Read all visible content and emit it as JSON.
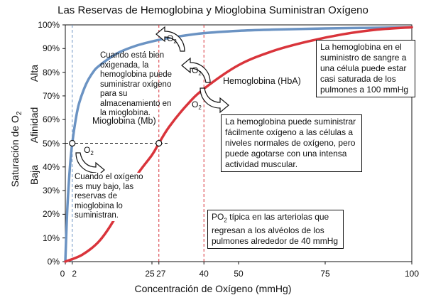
{
  "title": "Las Reservas de Hemoglobina y Mioglobina Suministran Oxígeno",
  "o2_label": "O",
  "o2_sub": "2",
  "annotations": {
    "well_oxygenated": "Cuando está bien oxigenada, la hemoglobina puede suministrar oxígeno para su almacenamiento en la mioglobina.",
    "myo_curve": "Mioglobina (Mb)",
    "hemo_curve": "Hemoglobina (HbA)",
    "blood_box": "La hemoglobina en el suministro de sangre a una célula puede estar casi saturada de los pulmones a 100 mmHg",
    "cells_box": "La hemoglobina puede suministrar fácilmente oxígeno a las células a niveles normales de oxígeno, pero puede agotarse con una intensa actividad muscular.",
    "low_oxygen": "Cuando el oxígeno es muy bajo, las reservas de mioglobina lo suministran.",
    "po2_prefix": "PO",
    "po2_sub": "2",
    "po2_text": " típica en las arteriolas que regresan a los alvéolos de los pulmones alrededor de 40 mmHg"
  },
  "y_side": {
    "alta": "Alta",
    "afinidad": "Afinidad",
    "baja": "Baja"
  },
  "chart_data": {
    "type": "line",
    "title": "Las Reservas de Hemoglobina y Mioglobina Suministran Oxígeno",
    "xlabel": "Concentración de Oxígeno (mmHg)",
    "ylabel_prefix": "Saturación de O",
    "ylabel_sub": "2",
    "xlim": [
      0,
      100
    ],
    "ylim": [
      0,
      100
    ],
    "x_ticks": [
      0,
      2,
      25,
      27,
      40,
      50,
      75,
      100
    ],
    "y_ticks": [
      "0%",
      "10%",
      "20%",
      "30%",
      "40%",
      "50%",
      "60%",
      "70%",
      "80%",
      "90%",
      "100%"
    ],
    "series": [
      {
        "name": "Mioglobina (Mb)",
        "color": "#6b93c3",
        "x": [
          0,
          0.5,
          1,
          1.5,
          2,
          3,
          4,
          6,
          8,
          10,
          15,
          20,
          25,
          30,
          40,
          50,
          60,
          75,
          100
        ],
        "y": [
          0,
          20,
          33,
          43,
          50,
          60,
          67,
          75,
          80,
          83,
          88,
          91,
          93,
          94.5,
          96.5,
          97.5,
          98,
          98.5,
          99
        ]
      },
      {
        "name": "Hemoglobina (HbA)",
        "color": "#d9343b",
        "x": [
          0,
          5,
          10,
          15,
          20,
          25,
          27,
          30,
          35,
          40,
          50,
          60,
          70,
          80,
          90,
          100
        ],
        "y": [
          0,
          3,
          9,
          20,
          35,
          45,
          50,
          57,
          66,
          73,
          83,
          89,
          93,
          96,
          98,
          99
        ]
      }
    ],
    "reference_lines": [
      {
        "axis": "y",
        "value": 50,
        "style": "dashed",
        "color": "#111"
      },
      {
        "axis": "x",
        "value": 2,
        "style": "dashed",
        "color": "#6b93c3"
      },
      {
        "axis": "x",
        "value": 27,
        "style": "dashed",
        "color": "#d9343b"
      },
      {
        "axis": "x",
        "value": 40,
        "style": "dashed",
        "color": "#d9343b"
      }
    ],
    "markers": [
      {
        "x": 2,
        "y": 50
      },
      {
        "x": 27,
        "y": 50
      }
    ],
    "grid": false,
    "legend": "none"
  }
}
